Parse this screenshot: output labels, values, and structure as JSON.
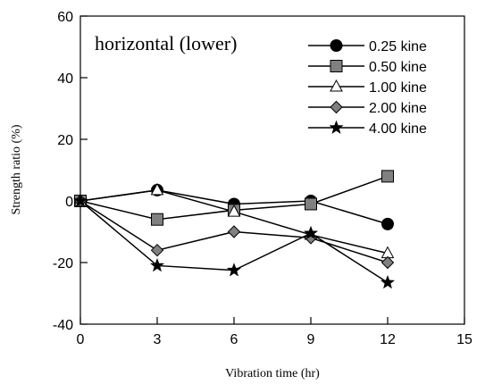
{
  "chart_data": {
    "type": "line",
    "title": "horizontal (lower)",
    "xlabel": "Vibration time (hr)",
    "ylabel": "Strength ratio (%)",
    "xlim": [
      0,
      15
    ],
    "ylim": [
      -40,
      60
    ],
    "x_ticks": [
      "0",
      "3",
      "6",
      "9",
      "12",
      "15"
    ],
    "y_ticks": [
      "60",
      "40",
      "20",
      "0",
      "-20",
      "-40"
    ],
    "x": [
      0,
      3,
      6,
      9,
      12
    ],
    "grid": false,
    "legend_position": "top-right",
    "series": [
      {
        "name": "0.25 kine",
        "marker": "circle",
        "fill": "#000000",
        "values": [
          0,
          3.5,
          -1,
          0,
          -7.5
        ]
      },
      {
        "name": "0.50 kine",
        "marker": "square",
        "fill": "#808080",
        "values": [
          0,
          -6,
          -3,
          -1,
          8
        ]
      },
      {
        "name": "1.00 kine",
        "marker": "triangle",
        "fill": "#ffffff",
        "values": [
          0,
          3.5,
          -3.5,
          -11,
          -17
        ]
      },
      {
        "name": "2.00 kine",
        "marker": "diamond",
        "fill": "#808080",
        "values": [
          0,
          -16,
          -10,
          -12,
          -20
        ]
      },
      {
        "name": "4.00 kine",
        "marker": "star",
        "fill": "#000000",
        "values": [
          0,
          -21,
          -22.5,
          -10.5,
          -26.5
        ]
      }
    ]
  }
}
